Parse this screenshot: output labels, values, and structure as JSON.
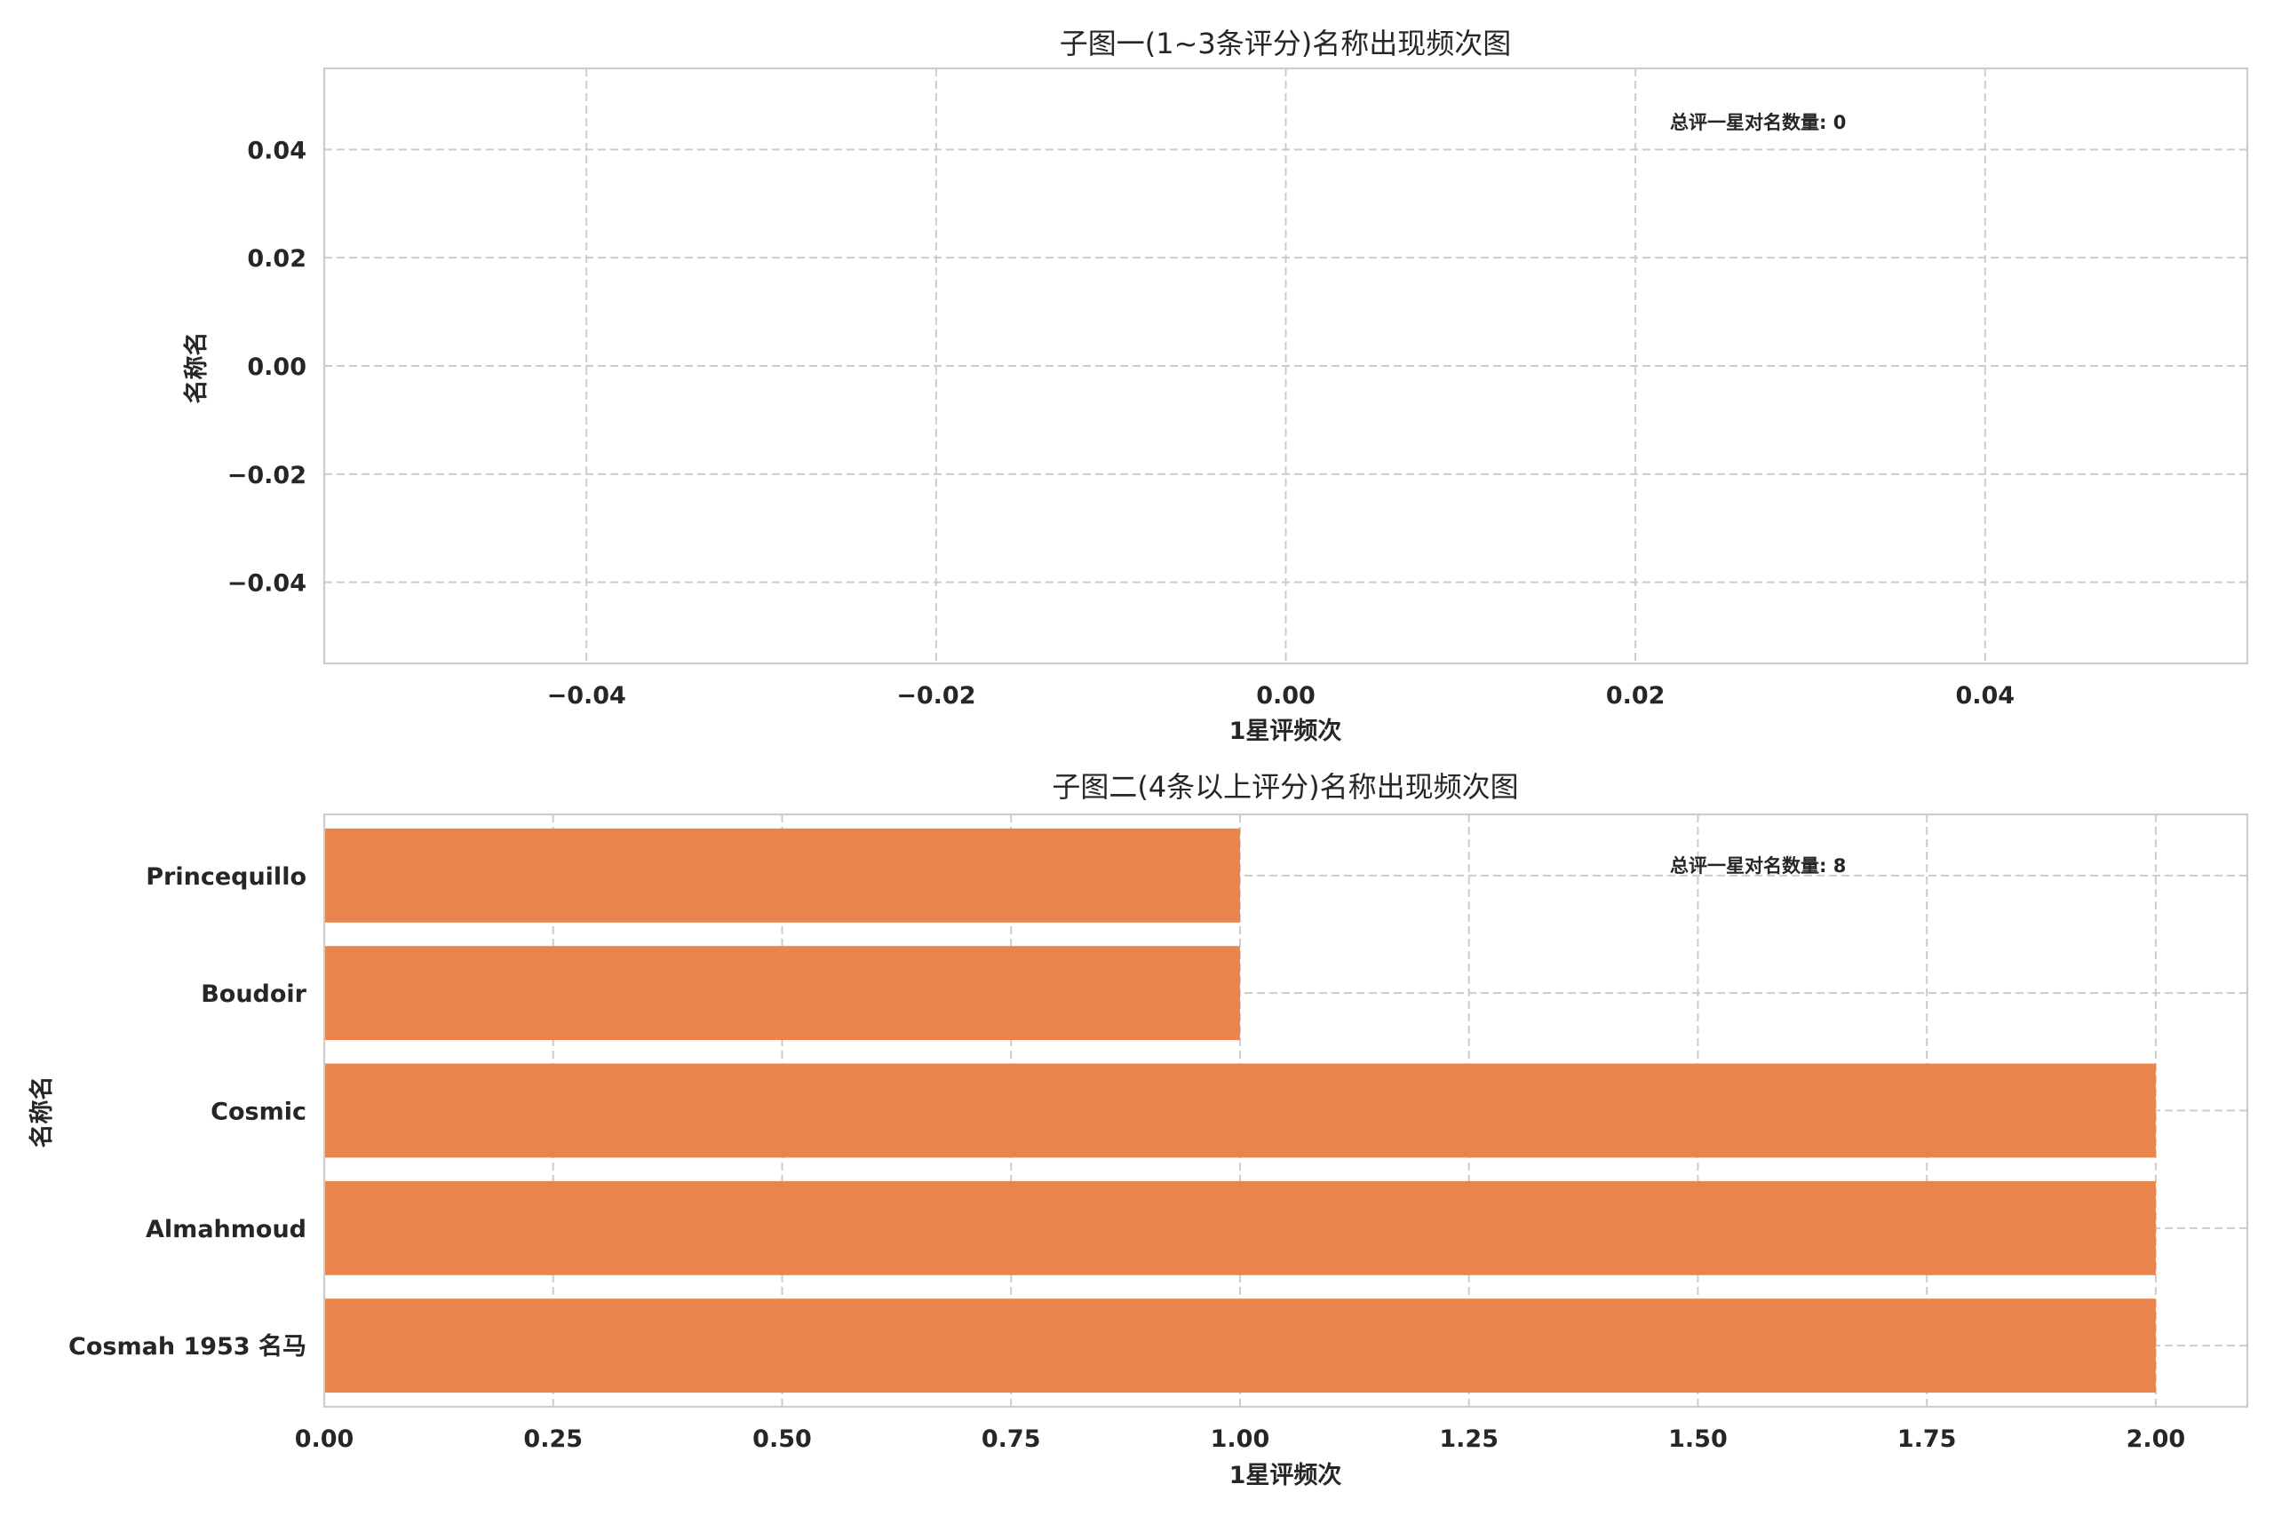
{
  "colors": {
    "bar": "#e8844c",
    "grid": "#cccccc",
    "text": "#262626"
  },
  "chart_data": [
    {
      "type": "bar",
      "orientation": "horizontal",
      "title": "子图一(1~3条评分)名称出现频次图",
      "xlabel": "1星评频次",
      "ylabel": "名称名",
      "categories": [],
      "values": [],
      "xlim": [
        -0.055,
        0.055
      ],
      "ylim": [
        -0.055,
        0.055
      ],
      "xticks": [
        "−0.04",
        "−0.02",
        "0.00",
        "0.02",
        "0.04"
      ],
      "yticks": [
        "0.04",
        "0.02",
        "0.00",
        "−0.02",
        "−0.04"
      ],
      "annotation": "总评一星对名数量: 0",
      "grid": true
    },
    {
      "type": "bar",
      "orientation": "horizontal",
      "title": "子图二(4条以上评分)名称出现频次图",
      "xlabel": "1星评频次",
      "ylabel": "名称名",
      "categories": [
        "Princequillo",
        "Boudoir",
        "Cosmic",
        "Almahmoud",
        "Cosmah 1953 名马"
      ],
      "values": [
        1,
        1,
        2,
        2,
        2
      ],
      "xlim": [
        0,
        2.1
      ],
      "xticks": [
        "0.00",
        "0.25",
        "0.50",
        "0.75",
        "1.00",
        "1.25",
        "1.50",
        "1.75",
        "2.00"
      ],
      "annotation": "总评一星对名数量: 8",
      "grid": true
    }
  ]
}
